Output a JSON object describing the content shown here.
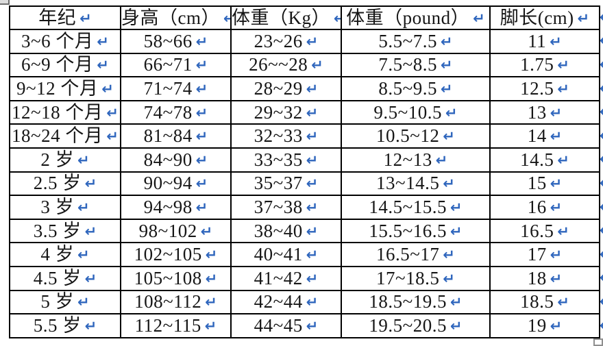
{
  "colors": {
    "table_border": "#000000",
    "paragraph_mark": "#2f66bd",
    "background": "#ffffff",
    "text": "#161616"
  },
  "marks": {
    "pilcrow": "↵"
  },
  "table": {
    "headers": [
      "年纪",
      "身高（cm）",
      "体重（Kg）",
      "体重（pound）",
      "脚长(cm)"
    ],
    "rows": [
      [
        "3~6 个月",
        "58~66",
        "23~26",
        "5.5~7.5",
        "11"
      ],
      [
        "6~9 个月",
        "66~71",
        "26~~28",
        "7.5~8.5",
        "1.75"
      ],
      [
        "9~12 个月",
        "71~74",
        "28~29",
        "8.5~9.5",
        "12.5"
      ],
      [
        "12~18 个月",
        "74~78",
        "29~32",
        "9.5~10.5",
        "13"
      ],
      [
        "18~24 个月",
        "81~84",
        "32~33",
        "10.5~12",
        "14"
      ],
      [
        "2 岁",
        "84~90",
        "33~35",
        "12~13",
        "14.5"
      ],
      [
        "2.5 岁",
        "90~94",
        "35~37",
        "13~14.5",
        "15"
      ],
      [
        "3 岁",
        "94~98",
        "37~38",
        "14.5~15.5",
        "16"
      ],
      [
        "3.5 岁",
        "98~102",
        "38~40",
        "15.5~16.5",
        "16.5"
      ],
      [
        "4 岁",
        "102~105",
        "40~41",
        "16.5~17",
        "17"
      ],
      [
        "4.5 岁",
        "105~108",
        "41~42",
        "17~18.5",
        "18"
      ],
      [
        "5 岁",
        "108~112",
        "42~44",
        "18.5~19.5",
        "18.5"
      ],
      [
        "5.5 岁",
        "112~115",
        "44~45",
        "19.5~20.5",
        "19"
      ]
    ]
  }
}
